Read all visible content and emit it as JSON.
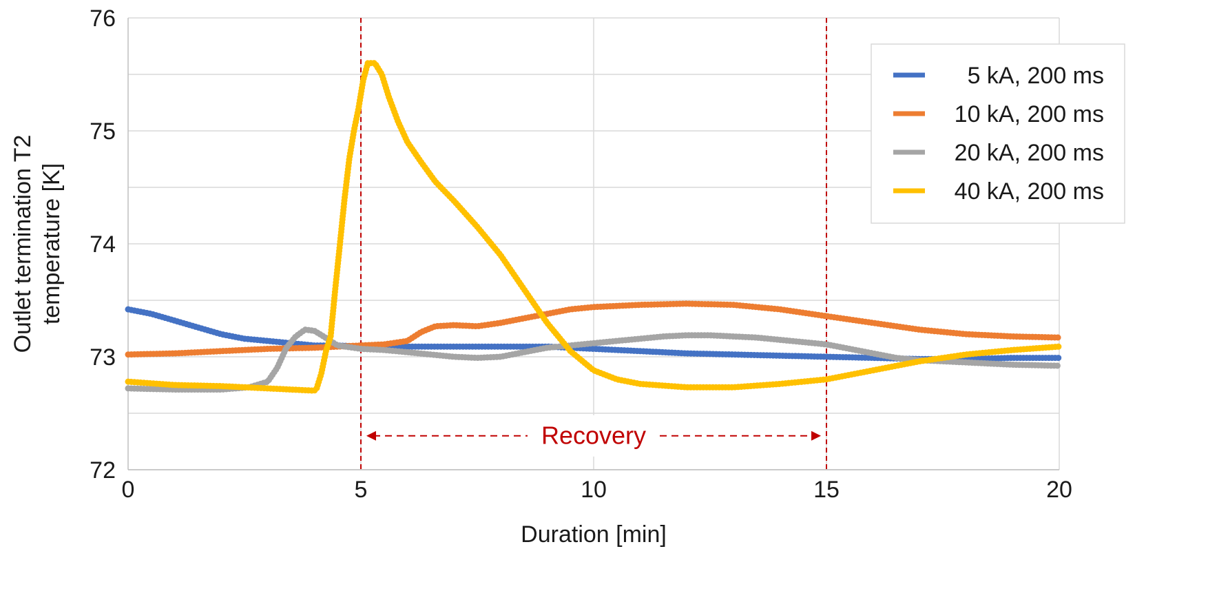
{
  "chart_data": {
    "type": "line",
    "xlabel": "Duration [min]",
    "ylabel_lines": [
      "Outlet termination T2",
      "temperature [K]"
    ],
    "xlim": [
      0,
      20
    ],
    "ylim": [
      72,
      76
    ],
    "x_ticks": [
      0,
      5,
      10,
      15,
      20
    ],
    "y_ticks": [
      72,
      73,
      74,
      75,
      76
    ],
    "grid": true,
    "legend_position": "top-right",
    "series": [
      {
        "name": "5 kA, 200 ms",
        "color": "#4472C4",
        "points": [
          [
            0,
            73.42
          ],
          [
            0.5,
            73.38
          ],
          [
            1,
            73.32
          ],
          [
            1.5,
            73.26
          ],
          [
            2,
            73.2
          ],
          [
            2.5,
            73.16
          ],
          [
            3,
            73.14
          ],
          [
            3.5,
            73.12
          ],
          [
            4,
            73.1
          ],
          [
            4.5,
            73.1
          ],
          [
            5,
            73.09
          ],
          [
            6,
            73.09
          ],
          [
            7,
            73.09
          ],
          [
            8,
            73.09
          ],
          [
            9,
            73.09
          ],
          [
            10,
            73.07
          ],
          [
            11,
            73.05
          ],
          [
            12,
            73.03
          ],
          [
            13,
            73.02
          ],
          [
            14,
            73.01
          ],
          [
            15,
            73.0
          ],
          [
            16,
            72.99
          ],
          [
            17,
            72.98
          ],
          [
            18,
            72.98
          ],
          [
            19,
            72.99
          ],
          [
            20,
            72.99
          ]
        ]
      },
      {
        "name": "10 kA, 200 ms",
        "color": "#ED7D31",
        "points": [
          [
            0,
            73.02
          ],
          [
            1,
            73.03
          ],
          [
            2,
            73.05
          ],
          [
            3,
            73.07
          ],
          [
            4,
            73.08
          ],
          [
            5,
            73.1
          ],
          [
            5.5,
            73.11
          ],
          [
            6,
            73.14
          ],
          [
            6.3,
            73.22
          ],
          [
            6.6,
            73.27
          ],
          [
            7,
            73.28
          ],
          [
            7.5,
            73.27
          ],
          [
            8,
            73.3
          ],
          [
            8.5,
            73.34
          ],
          [
            9,
            73.38
          ],
          [
            9.5,
            73.42
          ],
          [
            10,
            73.44
          ],
          [
            11,
            73.46
          ],
          [
            12,
            73.47
          ],
          [
            13,
            73.46
          ],
          [
            14,
            73.42
          ],
          [
            15,
            73.36
          ],
          [
            16,
            73.3
          ],
          [
            17,
            73.24
          ],
          [
            18,
            73.2
          ],
          [
            19,
            73.18
          ],
          [
            20,
            73.17
          ]
        ]
      },
      {
        "name": "20 kA, 200 ms",
        "color": "#A5A5A5",
        "points": [
          [
            0,
            72.72
          ],
          [
            1,
            72.71
          ],
          [
            2,
            72.71
          ],
          [
            2.6,
            72.73
          ],
          [
            3,
            72.78
          ],
          [
            3.2,
            72.9
          ],
          [
            3.4,
            73.08
          ],
          [
            3.6,
            73.18
          ],
          [
            3.8,
            73.24
          ],
          [
            4,
            73.23
          ],
          [
            4.2,
            73.18
          ],
          [
            4.5,
            73.1
          ],
          [
            5,
            73.07
          ],
          [
            5.5,
            73.06
          ],
          [
            6,
            73.04
          ],
          [
            6.5,
            73.02
          ],
          [
            7,
            73.0
          ],
          [
            7.5,
            72.99
          ],
          [
            8,
            73.0
          ],
          [
            8.5,
            73.04
          ],
          [
            9,
            73.08
          ],
          [
            9.5,
            73.1
          ],
          [
            10,
            73.12
          ],
          [
            10.5,
            73.14
          ],
          [
            11,
            73.16
          ],
          [
            11.5,
            73.18
          ],
          [
            12,
            73.19
          ],
          [
            12.5,
            73.19
          ],
          [
            13,
            73.18
          ],
          [
            13.5,
            73.17
          ],
          [
            14,
            73.15
          ],
          [
            14.5,
            73.13
          ],
          [
            15,
            73.11
          ],
          [
            15.5,
            73.07
          ],
          [
            16,
            73.03
          ],
          [
            16.5,
            72.99
          ],
          [
            17,
            72.97
          ],
          [
            18,
            72.95
          ],
          [
            19,
            72.93
          ],
          [
            20,
            72.92
          ]
        ]
      },
      {
        "name": "40 kA, 200 ms",
        "color": "#FFC000",
        "points": [
          [
            0,
            72.78
          ],
          [
            1,
            72.75
          ],
          [
            2,
            72.74
          ],
          [
            3,
            72.72
          ],
          [
            3.5,
            72.71
          ],
          [
            4,
            72.7
          ],
          [
            4.05,
            72.72
          ],
          [
            4.15,
            72.85
          ],
          [
            4.25,
            73.05
          ],
          [
            4.35,
            73.18
          ],
          [
            4.45,
            73.6
          ],
          [
            4.55,
            74.0
          ],
          [
            4.65,
            74.4
          ],
          [
            4.75,
            74.75
          ],
          [
            4.85,
            75.0
          ],
          [
            4.95,
            75.2
          ],
          [
            5.05,
            75.45
          ],
          [
            5.15,
            75.6
          ],
          [
            5.3,
            75.6
          ],
          [
            5.45,
            75.5
          ],
          [
            5.6,
            75.3
          ],
          [
            5.8,
            75.08
          ],
          [
            6,
            74.9
          ],
          [
            6.3,
            74.72
          ],
          [
            6.6,
            74.55
          ],
          [
            7,
            74.38
          ],
          [
            7.5,
            74.15
          ],
          [
            8,
            73.9
          ],
          [
            8.5,
            73.6
          ],
          [
            9,
            73.3
          ],
          [
            9.5,
            73.05
          ],
          [
            10,
            72.88
          ],
          [
            10.5,
            72.8
          ],
          [
            11,
            72.76
          ],
          [
            12,
            72.73
          ],
          [
            13,
            72.73
          ],
          [
            14,
            72.76
          ],
          [
            15,
            72.8
          ],
          [
            16,
            72.88
          ],
          [
            17,
            72.96
          ],
          [
            18,
            73.02
          ],
          [
            19,
            73.06
          ],
          [
            20,
            73.09
          ]
        ]
      }
    ],
    "markers": [
      {
        "x": 5,
        "color": "#C00000"
      },
      {
        "x": 15,
        "color": "#C00000"
      }
    ],
    "annotation": {
      "text": "Recovery",
      "x_start": 5,
      "x_end": 15,
      "y": 72.3,
      "color": "#C00000"
    }
  }
}
